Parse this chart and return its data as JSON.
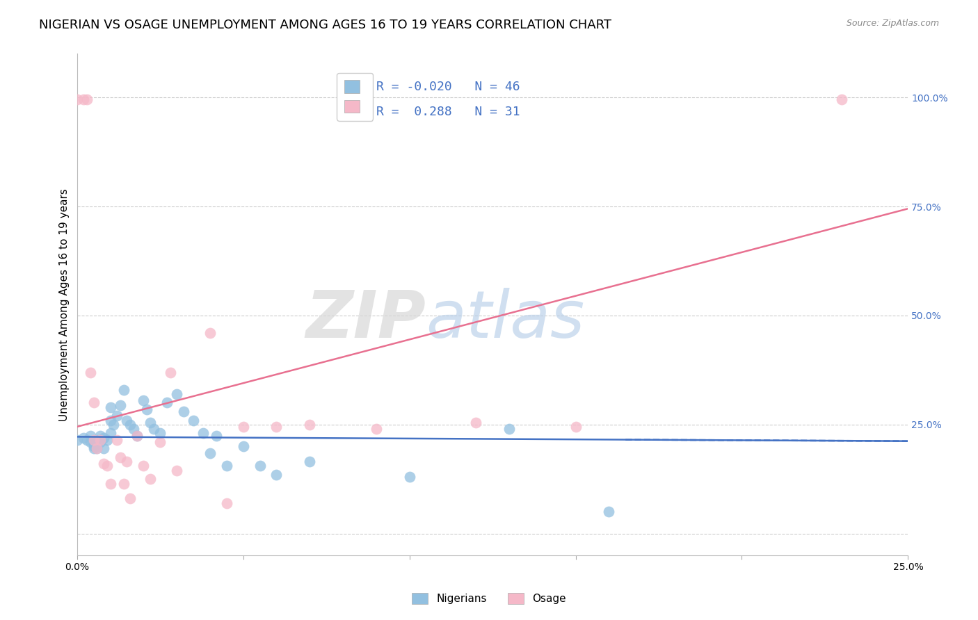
{
  "title": "NIGERIAN VS OSAGE UNEMPLOYMENT AMONG AGES 16 TO 19 YEARS CORRELATION CHART",
  "source": "Source: ZipAtlas.com",
  "ylabel": "Unemployment Among Ages 16 to 19 years",
  "xlim": [
    0.0,
    0.25
  ],
  "ylim": [
    -0.05,
    1.1
  ],
  "xticks": [
    0.0,
    0.05,
    0.1,
    0.15,
    0.2,
    0.25
  ],
  "yticks": [
    0.0,
    0.25,
    0.5,
    0.75,
    1.0
  ],
  "ytick_labels": [
    "",
    "25.0%",
    "50.0%",
    "75.0%",
    "100.0%"
  ],
  "xtick_labels": [
    "0.0%",
    "",
    "",
    "",
    "",
    "25.0%"
  ],
  "watermark_zip": "ZIP",
  "watermark_atlas": "atlas",
  "nigerian_color": "#92c0e0",
  "osage_color": "#f5b8c8",
  "nigerian_line_color": "#4472c4",
  "osage_line_color": "#e87090",
  "nigerian_R": -0.02,
  "nigerian_N": 46,
  "osage_R": 0.288,
  "osage_N": 31,
  "nigerian_x": [
    0.0,
    0.002,
    0.003,
    0.004,
    0.004,
    0.005,
    0.005,
    0.005,
    0.006,
    0.006,
    0.007,
    0.007,
    0.008,
    0.008,
    0.009,
    0.01,
    0.01,
    0.01,
    0.011,
    0.012,
    0.013,
    0.014,
    0.015,
    0.016,
    0.017,
    0.018,
    0.02,
    0.021,
    0.022,
    0.023,
    0.025,
    0.027,
    0.03,
    0.032,
    0.035,
    0.038,
    0.04,
    0.042,
    0.045,
    0.05,
    0.055,
    0.06,
    0.07,
    0.1,
    0.13,
    0.16
  ],
  "nigerian_y": [
    0.215,
    0.22,
    0.215,
    0.21,
    0.225,
    0.205,
    0.195,
    0.2,
    0.215,
    0.195,
    0.225,
    0.21,
    0.22,
    0.195,
    0.215,
    0.29,
    0.26,
    0.23,
    0.25,
    0.27,
    0.295,
    0.33,
    0.26,
    0.25,
    0.24,
    0.225,
    0.305,
    0.285,
    0.255,
    0.24,
    0.23,
    0.3,
    0.32,
    0.28,
    0.26,
    0.23,
    0.185,
    0.225,
    0.155,
    0.2,
    0.155,
    0.135,
    0.165,
    0.13,
    0.24,
    0.05
  ],
  "osage_x": [
    0.0,
    0.002,
    0.003,
    0.004,
    0.005,
    0.005,
    0.006,
    0.007,
    0.008,
    0.009,
    0.01,
    0.012,
    0.013,
    0.014,
    0.015,
    0.016,
    0.018,
    0.02,
    0.022,
    0.025,
    0.028,
    0.03,
    0.04,
    0.045,
    0.05,
    0.06,
    0.07,
    0.09,
    0.12,
    0.15,
    0.23
  ],
  "osage_y": [
    0.995,
    0.995,
    0.995,
    0.37,
    0.3,
    0.215,
    0.195,
    0.215,
    0.16,
    0.155,
    0.115,
    0.215,
    0.175,
    0.115,
    0.165,
    0.08,
    0.225,
    0.155,
    0.125,
    0.21,
    0.37,
    0.145,
    0.46,
    0.07,
    0.245,
    0.245,
    0.25,
    0.24,
    0.255,
    0.245,
    0.995
  ],
  "grid_color": "#cccccc",
  "background_color": "#ffffff",
  "title_fontsize": 13,
  "axis_label_fontsize": 11,
  "tick_label_fontsize": 10,
  "tick_color_right": "#4472c4",
  "legend_fontsize": 13,
  "nigerian_line_intercept": 0.222,
  "nigerian_line_slope": -0.04,
  "osage_line_intercept": 0.245,
  "osage_line_slope": 2.0
}
